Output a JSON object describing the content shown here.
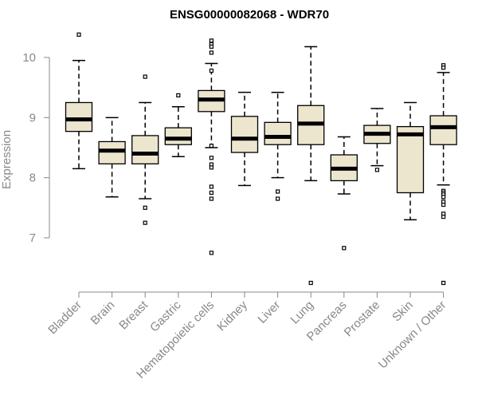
{
  "colors": {
    "box_fill": "#ede6cf",
    "box_stroke": "#000000",
    "axis": "#888888",
    "text": "#888888",
    "title": "#000000"
  },
  "chart_data": {
    "type": "boxplot",
    "title": "ENSG00000082068 - WDR70",
    "xlabel": "",
    "ylabel": "Expression",
    "ylim": [
      6.1,
      10.5
    ],
    "yticks": [
      7,
      8,
      9,
      10
    ],
    "grid": false,
    "legend": "none",
    "categories": [
      "Bladder",
      "Brain",
      "Breast",
      "Gastric",
      "Hematopoietic cells",
      "Kidney",
      "Liver",
      "Lung",
      "Pancreas",
      "Prostate",
      "Skin",
      "Unknown / Other"
    ],
    "boxes": [
      {
        "category": "Bladder",
        "whisker_low": 8.15,
        "q1": 8.77,
        "median": 8.97,
        "q3": 9.25,
        "whisker_high": 9.95,
        "outliers": [
          10.38
        ]
      },
      {
        "category": "Brain",
        "whisker_low": 7.68,
        "q1": 8.23,
        "median": 8.45,
        "q3": 8.6,
        "whisker_high": 9.0,
        "outliers": []
      },
      {
        "category": "Breast",
        "whisker_low": 7.65,
        "q1": 8.23,
        "median": 8.4,
        "q3": 8.7,
        "whisker_high": 9.25,
        "outliers": [
          9.68,
          7.5,
          7.25
        ]
      },
      {
        "category": "Gastric",
        "whisker_low": 8.35,
        "q1": 8.55,
        "median": 8.65,
        "q3": 8.83,
        "whisker_high": 9.18,
        "outliers": [
          9.37
        ]
      },
      {
        "category": "Hematopoietic cells",
        "whisker_low": 8.5,
        "q1": 9.1,
        "median": 9.3,
        "q3": 9.45,
        "whisker_high": 9.9,
        "outliers": [
          10.28,
          10.22,
          10.18,
          10.08,
          9.78,
          8.53,
          8.33,
          8.22,
          8.17,
          7.85,
          7.75,
          7.65,
          6.75
        ]
      },
      {
        "category": "Kidney",
        "whisker_low": 7.87,
        "q1": 8.42,
        "median": 8.65,
        "q3": 9.02,
        "whisker_high": 9.42,
        "outliers": []
      },
      {
        "category": "Liver",
        "whisker_low": 8.0,
        "q1": 8.55,
        "median": 8.68,
        "q3": 8.92,
        "whisker_high": 9.42,
        "outliers": [
          7.77,
          7.65
        ]
      },
      {
        "category": "Lung",
        "whisker_low": 7.95,
        "q1": 8.55,
        "median": 8.9,
        "q3": 9.2,
        "whisker_high": 10.18,
        "outliers": [
          6.25
        ]
      },
      {
        "category": "Pancreas",
        "whisker_low": 7.73,
        "q1": 7.95,
        "median": 8.15,
        "q3": 8.38,
        "whisker_high": 8.68,
        "outliers": [
          6.83
        ]
      },
      {
        "category": "Prostate",
        "whisker_low": 8.2,
        "q1": 8.57,
        "median": 8.73,
        "q3": 8.87,
        "whisker_high": 9.15,
        "outliers": [
          8.13
        ]
      },
      {
        "category": "Skin",
        "whisker_low": 7.3,
        "q1": 7.75,
        "median": 8.72,
        "q3": 8.85,
        "whisker_high": 9.25,
        "outliers": []
      },
      {
        "category": "Unknown / Other",
        "whisker_low": 7.88,
        "q1": 8.55,
        "median": 8.84,
        "q3": 9.03,
        "whisker_high": 9.75,
        "outliers": [
          9.87,
          9.83,
          7.78,
          7.75,
          7.72,
          7.68,
          7.6,
          7.55,
          7.4,
          7.35,
          6.25
        ]
      }
    ]
  }
}
